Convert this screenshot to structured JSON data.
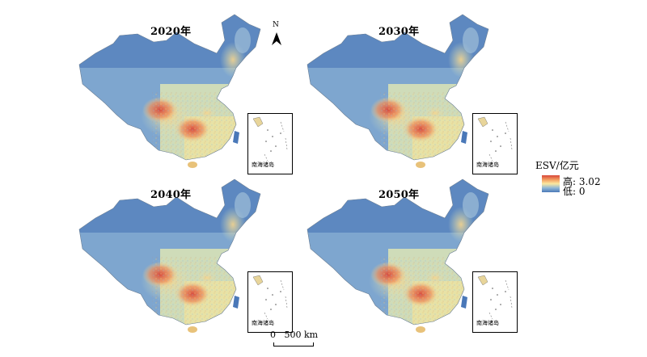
{
  "maps": [
    {
      "year": "2020年"
    },
    {
      "year": "2030年"
    },
    {
      "year": "2040年"
    },
    {
      "year": "2050年"
    }
  ],
  "inset_label": "南海诸岛",
  "north_label": "N",
  "legend": {
    "title": "ESV/亿元",
    "high": "高: 3.02",
    "low": "低: 0",
    "max_value": 3.02,
    "min_value": 0,
    "colors": [
      "#d7463a",
      "#f29a5e",
      "#fbe9a0",
      "#8fb7d6",
      "#4a78b8"
    ]
  },
  "scale": {
    "label": "0   500 km"
  }
}
